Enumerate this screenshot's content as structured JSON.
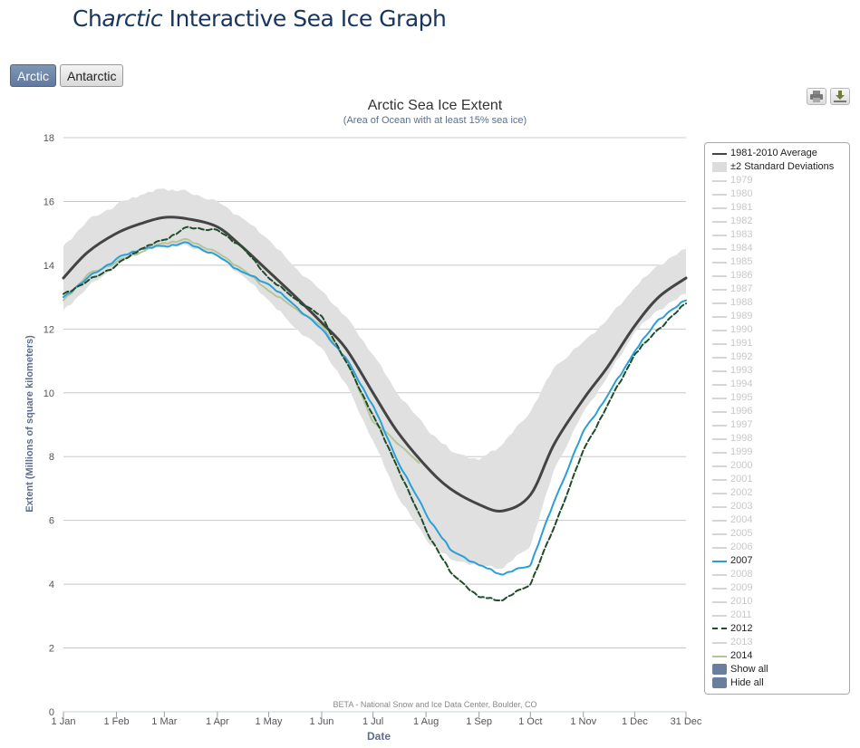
{
  "header": {
    "title_ch": "Ch",
    "title_arctic": "arctic",
    "title_rest": " Interactive Sea Ice Graph"
  },
  "toggles": [
    {
      "label": "Arctic",
      "active": true
    },
    {
      "label": "Antarctic",
      "active": false
    }
  ],
  "export_icons": [
    "print-icon",
    "download-icon"
  ],
  "chart_data": {
    "type": "line",
    "title": "Arctic Sea Ice Extent",
    "subtitle": "(Area of Ocean with at least 15% sea ice)",
    "xlabel": "Date",
    "ylabel": "Extent (Millions of square kilometers)",
    "ylim": [
      0,
      18
    ],
    "yticks": [
      0,
      2,
      4,
      6,
      8,
      10,
      12,
      14,
      16,
      18
    ],
    "xlim": [
      1,
      365
    ],
    "xticks": [
      {
        "day": 1,
        "label": "1 Jan"
      },
      {
        "day": 32,
        "label": "1 Feb"
      },
      {
        "day": 60,
        "label": "1 Mar"
      },
      {
        "day": 91,
        "label": "1 Apr"
      },
      {
        "day": 121,
        "label": "1 May"
      },
      {
        "day": 152,
        "label": "1 Jun"
      },
      {
        "day": 182,
        "label": "1 Jul"
      },
      {
        "day": 213,
        "label": "1 Aug"
      },
      {
        "day": 244,
        "label": "1 Sep"
      },
      {
        "day": 274,
        "label": "1 Oct"
      },
      {
        "day": 305,
        "label": "1 Nov"
      },
      {
        "day": 335,
        "label": "1 Dec"
      },
      {
        "day": 365,
        "label": "31 Dec"
      }
    ],
    "grid": true,
    "credit": "BETA - National Snow and Ice Data Center, Boulder, CO",
    "x_day_of_year": [
      1,
      15,
      32,
      46,
      60,
      74,
      91,
      105,
      121,
      135,
      152,
      166,
      182,
      196,
      213,
      227,
      244,
      258,
      274,
      288,
      305,
      319,
      335,
      349,
      365
    ],
    "std_band": {
      "name": "±2 Standard Deviations",
      "color": "#e0e0e0",
      "upper": [
        14.6,
        15.4,
        15.9,
        16.2,
        16.4,
        16.3,
        16.0,
        15.5,
        14.8,
        14.0,
        13.2,
        12.4,
        11.2,
        10.0,
        8.9,
        8.2,
        7.9,
        8.4,
        9.4,
        10.8,
        11.6,
        12.3,
        13.3,
        14.0,
        14.5
      ],
      "lower": [
        12.6,
        13.3,
        14.0,
        14.5,
        14.6,
        14.6,
        14.3,
        13.7,
        12.9,
        12.1,
        11.4,
        10.3,
        8.5,
        6.8,
        5.4,
        4.8,
        4.6,
        4.5,
        5.2,
        7.6,
        9.4,
        10.5,
        11.9,
        12.6,
        13.1
      ]
    },
    "series": [
      {
        "name": "1981-2010 Average",
        "color": "#444444",
        "style": "solid",
        "values": [
          13.6,
          14.4,
          15.0,
          15.3,
          15.5,
          15.45,
          15.2,
          14.6,
          13.8,
          13.1,
          12.2,
          11.4,
          10.0,
          8.8,
          7.7,
          7.0,
          6.5,
          6.3,
          6.8,
          8.4,
          9.8,
          10.8,
          12.1,
          13.0,
          13.6
        ]
      },
      {
        "name": "2007",
        "color": "#2a9fd8",
        "style": "solid",
        "values": [
          13.0,
          13.6,
          14.2,
          14.5,
          14.6,
          14.7,
          14.3,
          13.8,
          13.4,
          12.8,
          12.0,
          11.1,
          9.6,
          7.9,
          6.2,
          5.1,
          4.6,
          4.3,
          4.6,
          6.6,
          8.8,
          9.9,
          11.3,
          12.3,
          12.9
        ]
      },
      {
        "name": "2012",
        "color": "#1f4d2b",
        "style": "dash",
        "values": [
          13.1,
          13.5,
          14.0,
          14.5,
          14.8,
          15.2,
          15.1,
          14.6,
          13.6,
          13.0,
          12.4,
          11.0,
          9.3,
          7.7,
          5.7,
          4.4,
          3.6,
          3.5,
          4.0,
          5.8,
          8.2,
          9.6,
          11.2,
          12.0,
          12.8
        ]
      },
      {
        "name": "2014",
        "color": "#b4c59a",
        "style": "solid",
        "x_end": 209,
        "values": [
          12.9,
          13.7,
          14.1,
          14.4,
          14.7,
          14.8,
          14.4,
          13.9,
          13.2,
          12.7,
          12.1,
          11.1,
          9.1,
          7.8
        ]
      }
    ]
  },
  "legend": {
    "items": [
      {
        "label": "1981-2010 Average",
        "on": true,
        "swatch": "line",
        "color": "#444444"
      },
      {
        "label": "±2 Standard Deviations",
        "on": true,
        "swatch": "box",
        "color": "#dcdcdc"
      },
      {
        "label": "1979"
      },
      {
        "label": "1980"
      },
      {
        "label": "1981"
      },
      {
        "label": "1982"
      },
      {
        "label": "1983"
      },
      {
        "label": "1984"
      },
      {
        "label": "1985"
      },
      {
        "label": "1986"
      },
      {
        "label": "1987"
      },
      {
        "label": "1988"
      },
      {
        "label": "1989"
      },
      {
        "label": "1990"
      },
      {
        "label": "1991"
      },
      {
        "label": "1992"
      },
      {
        "label": "1993"
      },
      {
        "label": "1994"
      },
      {
        "label": "1995"
      },
      {
        "label": "1996"
      },
      {
        "label": "1997"
      },
      {
        "label": "1998"
      },
      {
        "label": "1999"
      },
      {
        "label": "2000"
      },
      {
        "label": "2001"
      },
      {
        "label": "2002"
      },
      {
        "label": "2003"
      },
      {
        "label": "2004"
      },
      {
        "label": "2005"
      },
      {
        "label": "2006"
      },
      {
        "label": "2007",
        "on": true,
        "swatch": "line",
        "color": "#2a9fd8"
      },
      {
        "label": "2008"
      },
      {
        "label": "2009"
      },
      {
        "label": "2010"
      },
      {
        "label": "2011"
      },
      {
        "label": "2012",
        "on": true,
        "swatch": "dash",
        "color": "#1f4d2b"
      },
      {
        "label": "2013"
      },
      {
        "label": "2014",
        "on": true,
        "swatch": "line",
        "color": "#b4c59a"
      }
    ],
    "show_all": "Show all",
    "hide_all": "Hide all"
  }
}
